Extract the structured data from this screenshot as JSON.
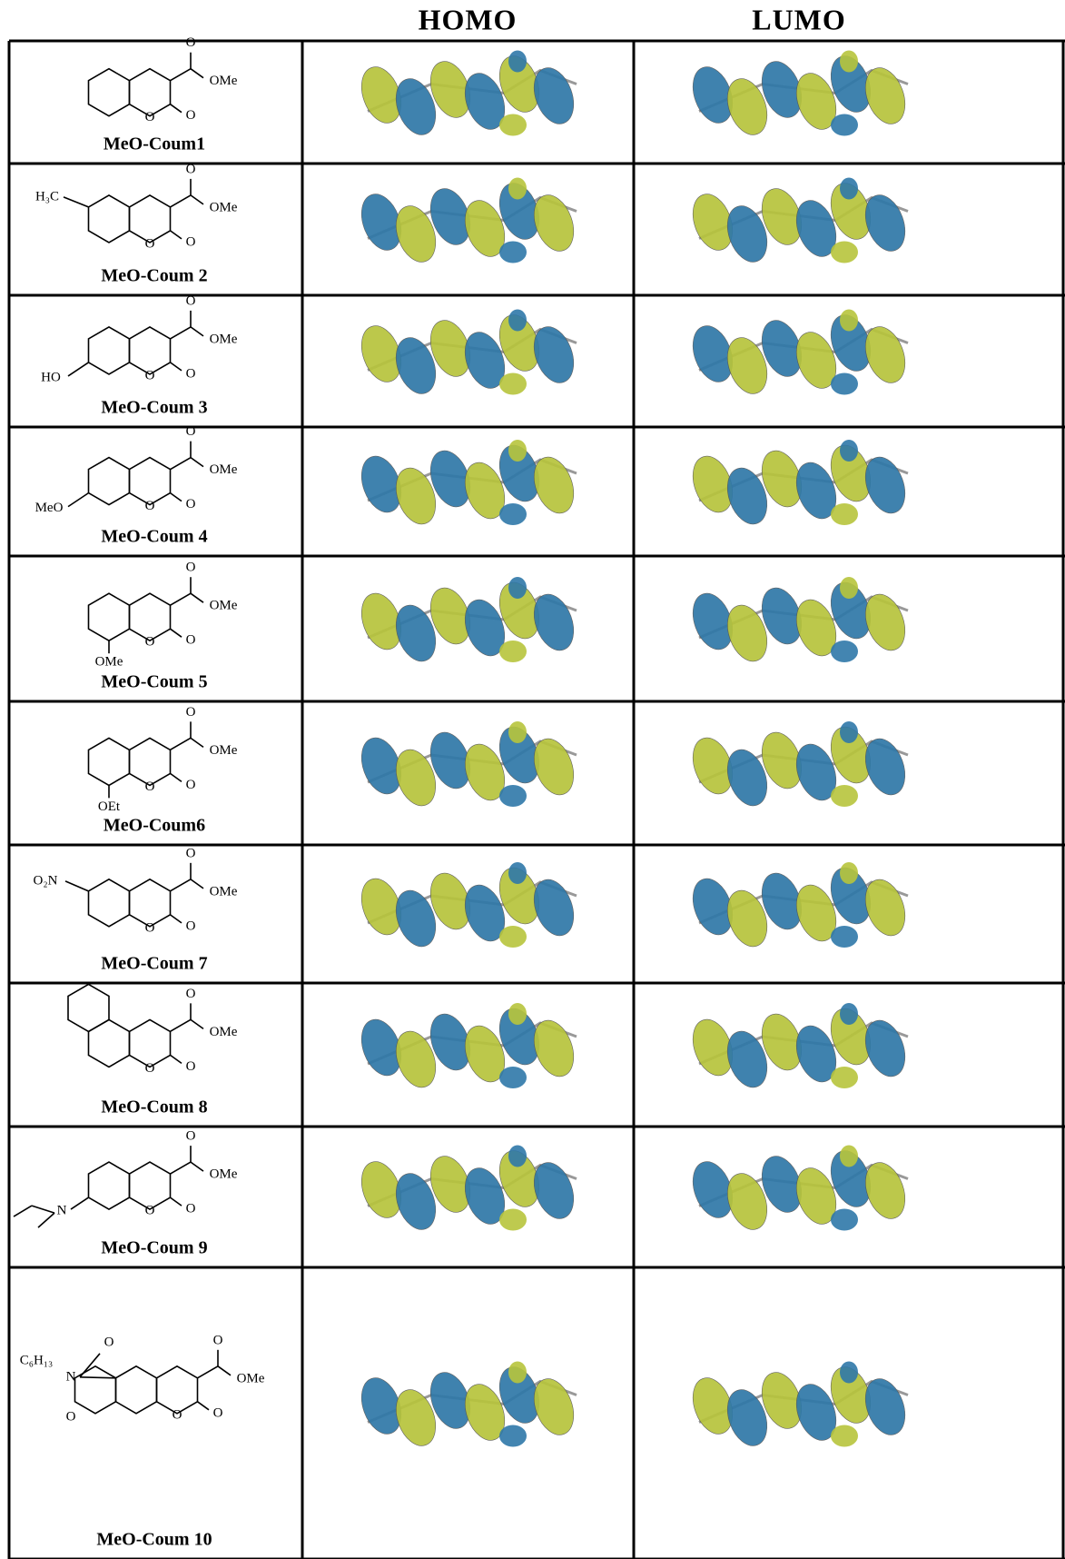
{
  "columns": [
    "HOMO",
    "LUMO"
  ],
  "rows": [
    {
      "name": "MeO-Coum1",
      "atoms": [
        "O",
        "OMe",
        "O",
        "O"
      ]
    },
    {
      "name": "MeO-Coum 2",
      "atoms": [
        "H₃C",
        "O",
        "OMe",
        "O",
        "O"
      ]
    },
    {
      "name": "MeO-Coum 3",
      "atoms": [
        "HO",
        "O",
        "OMe",
        "O",
        "O"
      ]
    },
    {
      "name": "MeO-Coum 4",
      "atoms": [
        "MeO",
        "O",
        "OMe",
        "O",
        "O"
      ]
    },
    {
      "name": "MeO-Coum 5",
      "atoms": [
        "OMe",
        "O",
        "OMe",
        "O",
        "O"
      ]
    },
    {
      "name": "MeO-Coum6",
      "atoms": [
        "OEt",
        "O",
        "OMe",
        "O",
        "O"
      ]
    },
    {
      "name": "MeO-Coum 7",
      "atoms": [
        "O₂N",
        "O",
        "OMe",
        "O",
        "O"
      ]
    },
    {
      "name": "MeO-Coum 8",
      "atoms": [
        "O",
        "OMe",
        "O",
        "O"
      ]
    },
    {
      "name": "MeO-Coum 9",
      "atoms": [
        "N",
        "O",
        "OMe",
        "O",
        "O"
      ]
    },
    {
      "name": "MeO-Coum 10",
      "atoms": [
        "C₆H₁₃",
        "N",
        "O",
        "O",
        "O",
        "OMe",
        "O",
        "O"
      ]
    }
  ]
}
